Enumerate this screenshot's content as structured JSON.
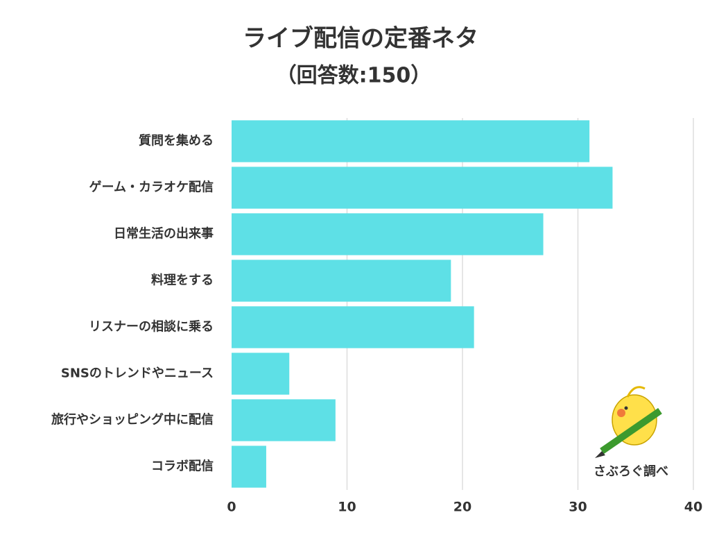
{
  "chart_data": {
    "type": "bar",
    "orientation": "horizontal",
    "title": "ライブ配信の定番ネタ",
    "subtitle": "（回答数:150）",
    "categories": [
      "質問を集める",
      "ゲーム・カラオケ配信",
      "日常生活の出来事",
      "料理をする",
      "リスナーの相談に乗る",
      "SNSのトレンドやニュース",
      "旅行やショッピング中に配信",
      "コラボ配信"
    ],
    "values": [
      31,
      33,
      27,
      19,
      21,
      5,
      9,
      3
    ],
    "color": "#5ee0e6",
    "xlim": [
      0,
      40
    ],
    "xticks": [
      0,
      10,
      20,
      30,
      40
    ],
    "grid": true,
    "annotation": "さぶろぐ調べ"
  }
}
